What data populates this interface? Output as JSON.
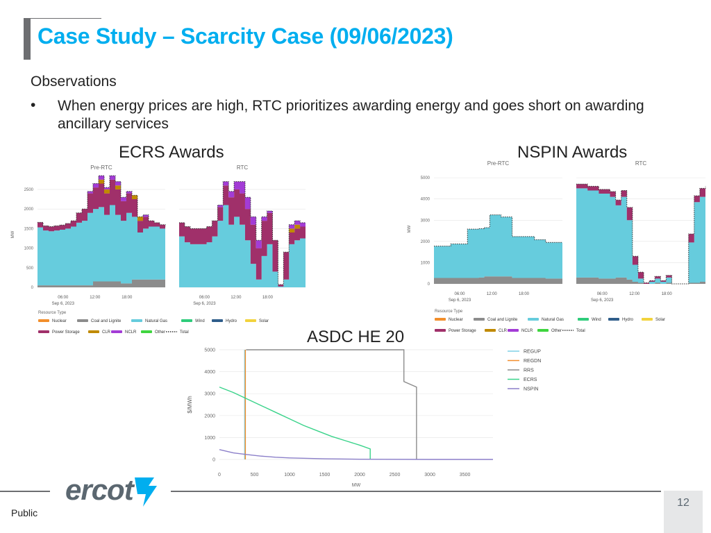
{
  "title": "Case Study – Scarcity Case (09/06/2023)",
  "observations_heading": "Observations",
  "bullet_marker": "•",
  "bullet_text": "When energy prices are high, RTC prioritizes awarding energy and goes short on awarding ancillary services",
  "footer": {
    "logo": "ercot",
    "classification": "Public",
    "page_number": "12"
  },
  "colors": {
    "title": "#00aeef",
    "nuclear": "#f28e2b",
    "coal": "#8c8c8c",
    "gas": "#66ccdd",
    "wind": "#2fcc7b",
    "hydro": "#2f5d8a",
    "solar": "#f2d33d",
    "storage": "#a0306a",
    "clr": "#c08a00",
    "nclr": "#a33cd6",
    "other": "#3fd53f",
    "regup": "#7fd0e6",
    "regdn": "#f28e2b",
    "rrs": "#8c8c8c",
    "ecrs": "#39d38a",
    "nspin": "#8b7fc9"
  },
  "legend_title": "Resource Type",
  "legend_items": [
    {
      "label": "Nuclear",
      "color": "#f28e2b",
      "dotted": false
    },
    {
      "label": "Coal and Lignite",
      "color": "#8c8c8c",
      "dotted": false
    },
    {
      "label": "Natural Gas",
      "color": "#66ccdd",
      "dotted": false
    },
    {
      "label": "Wind",
      "color": "#2fcc7b",
      "dotted": false
    },
    {
      "label": "Hydro",
      "color": "#2f5d8a",
      "dotted": false
    },
    {
      "label": "Solar",
      "color": "#f2d33d",
      "dotted": false
    },
    {
      "label": "Power Storage",
      "color": "#a0306a",
      "dotted": false
    },
    {
      "label": "CLR",
      "color": "#c08a00",
      "dotted": false
    },
    {
      "label": "NCLR",
      "color": "#a33cd6",
      "dotted": false
    },
    {
      "label": "Other",
      "color": "#3fd53f",
      "dotted": false
    },
    {
      "label": "Total",
      "color": "#333333",
      "dotted": true
    }
  ],
  "chart_data": [
    {
      "type": "area",
      "title": "ECRS Awards",
      "ylabel": "MW",
      "yticks": [
        "0",
        "500",
        "1000",
        "1500",
        "2000",
        "2500"
      ],
      "ylim": [
        0,
        2800
      ],
      "xticks": [
        "06:00",
        "12:00",
        "18:00"
      ],
      "xdate": "Sep 6, 2023",
      "panels": [
        {
          "name": "Pre-RTC",
          "x": [
            0,
            1,
            2,
            3,
            4,
            5,
            6,
            7,
            8,
            9,
            10,
            11,
            12,
            13,
            14,
            15,
            16,
            17,
            18,
            19,
            20,
            21,
            22,
            23
          ],
          "series": [
            {
              "name": "Coal and Lignite",
              "values": [
                50,
                50,
                50,
                50,
                50,
                50,
                50,
                50,
                50,
                50,
                150,
                150,
                150,
                150,
                150,
                100,
                100,
                200,
                200,
                200,
                200,
                200,
                200,
                200
              ]
            },
            {
              "name": "Natural Gas",
              "values": [
                1480,
                1400,
                1380,
                1400,
                1420,
                1450,
                1500,
                1600,
                1650,
                1850,
                1850,
                1900,
                1700,
                1950,
                1700,
                1600,
                1800,
                1600,
                1200,
                1300,
                1350,
                1350,
                1300,
                1250
              ]
            },
            {
              "name": "Power Storage",
              "values": [
                130,
                120,
                120,
                120,
                120,
                130,
                150,
                250,
                300,
                500,
                550,
                600,
                550,
                650,
                650,
                500,
                500,
                450,
                300,
                300,
                150,
                100,
                100,
                100
              ]
            },
            {
              "name": "CLR",
              "values": [
                0,
                0,
                0,
                0,
                0,
                0,
                0,
                0,
                0,
                0,
                0,
                100,
                100,
                0,
                100,
                0,
                0,
                100,
                100,
                0,
                0,
                0,
                0,
                0
              ]
            },
            {
              "name": "NCLR",
              "values": [
                0,
                0,
                0,
                0,
                0,
                0,
                0,
                0,
                0,
                50,
                100,
                100,
                50,
                100,
                100,
                100,
                50,
                0,
                0,
                50,
                0,
                0,
                0,
                0
              ]
            }
          ]
        },
        {
          "name": "RTC",
          "x": [
            0,
            1,
            2,
            3,
            4,
            5,
            6,
            7,
            8,
            9,
            10,
            11,
            12,
            13,
            14,
            15,
            16,
            17,
            18,
            19,
            20,
            21,
            22,
            23
          ],
          "series": [
            {
              "name": "Coal and Lignite",
              "values": [
                0,
                0,
                0,
                0,
                0,
                0,
                0,
                0,
                0,
                0,
                0,
                0,
                0,
                0,
                0,
                0,
                0,
                0,
                0,
                0,
                0,
                0,
                0,
                0
              ]
            },
            {
              "name": "Natural Gas",
              "values": [
                1300,
                1150,
                1100,
                1100,
                1100,
                1150,
                1300,
                1700,
                2100,
                1600,
                1800,
                1600,
                1200,
                600,
                200,
                800,
                1100,
                400,
                20,
                200,
                1100,
                1200,
                1250,
                1250
              ]
            },
            {
              "name": "Power Storage",
              "values": [
                350,
                400,
                400,
                400,
                400,
                400,
                400,
                350,
                500,
                700,
                700,
                800,
                800,
                1000,
                800,
                900,
                800,
                800,
                50,
                700,
                300,
                300,
                300,
                300
              ]
            },
            {
              "name": "CLR",
              "values": [
                0,
                0,
                0,
                0,
                0,
                0,
                0,
                0,
                0,
                0,
                0,
                0,
                0,
                0,
                0,
                0,
                0,
                0,
                0,
                0,
                100,
                100,
                0,
                0
              ]
            },
            {
              "name": "NCLR",
              "values": [
                0,
                0,
                0,
                0,
                0,
                0,
                0,
                50,
                100,
                150,
                200,
                300,
                300,
                200,
                200,
                100,
                50,
                0,
                0,
                0,
                100,
                100,
                100,
                100
              ]
            }
          ]
        }
      ]
    },
    {
      "type": "area",
      "title": "NSPIN Awards",
      "ylabel": "MW",
      "yticks": [
        "0",
        "1000",
        "2000",
        "3000",
        "4000",
        "5000"
      ],
      "ylim": [
        0,
        5200
      ],
      "xticks": [
        "06:00",
        "12:00",
        "18:00"
      ],
      "xdate": "Sep 6, 2023",
      "panels": [
        {
          "name": "Pre-RTC",
          "x": [
            0,
            1,
            2,
            3,
            4,
            5,
            6,
            7,
            8,
            9,
            10,
            11,
            12,
            13,
            14,
            15,
            16,
            17,
            18,
            19,
            20,
            21,
            22,
            23
          ],
          "series": [
            {
              "name": "Coal and Lignite",
              "values": [
                280,
                280,
                280,
                280,
                280,
                280,
                280,
                280,
                300,
                350,
                350,
                350,
                350,
                350,
                280,
                280,
                280,
                280,
                280,
                280,
                250,
                250,
                250,
                250
              ]
            },
            {
              "name": "Natural Gas",
              "values": [
                1500,
                1500,
                1500,
                1600,
                1600,
                1600,
                2300,
                2300,
                2300,
                2300,
                2900,
                2900,
                2800,
                2800,
                1950,
                1950,
                1950,
                1950,
                1800,
                1800,
                1700,
                1700,
                1700,
                1700
              ]
            }
          ]
        },
        {
          "name": "RTC",
          "x": [
            0,
            1,
            2,
            3,
            4,
            5,
            6,
            7,
            8,
            9,
            10,
            11,
            12,
            13,
            14,
            15,
            16,
            17,
            18,
            19,
            20,
            21,
            22,
            23
          ],
          "series": [
            {
              "name": "Coal and Lignite",
              "values": [
                300,
                300,
                300,
                300,
                250,
                250,
                250,
                300,
                300,
                200,
                100,
                50,
                0,
                0,
                50,
                0,
                50,
                0,
                0,
                0,
                50,
                50,
                100,
                100
              ]
            },
            {
              "name": "Natural Gas",
              "values": [
                4200,
                4200,
                4100,
                4100,
                4000,
                4000,
                3850,
                3400,
                3800,
                2800,
                800,
                200,
                0,
                100,
                200,
                100,
                250,
                0,
                0,
                0,
                1900,
                3800,
                4000,
                4100
              ]
            },
            {
              "name": "Power Storage",
              "values": [
                200,
                200,
                200,
                200,
                200,
                200,
                250,
                250,
                300,
                600,
                400,
                300,
                50,
                50,
                100,
                50,
                100,
                0,
                0,
                0,
                400,
                300,
                400,
                400
              ]
            }
          ]
        }
      ]
    },
    {
      "type": "line",
      "title": "ASDC HE 20",
      "xlabel": "MW",
      "ylabel": "$/MWh",
      "xlim": [
        0,
        3900
      ],
      "ylim": [
        0,
        5000
      ],
      "xticks": [
        0,
        500,
        1000,
        1500,
        2000,
        2500,
        3000,
        3500
      ],
      "yticks": [
        0,
        1000,
        2000,
        3000,
        4000,
        5000
      ],
      "series": [
        {
          "name": "REGUP",
          "x": [
            360,
            360
          ],
          "y": [
            0,
            5000
          ],
          "color": "#7fd0e6"
        },
        {
          "name": "REGDN",
          "x": [
            370,
            370
          ],
          "y": [
            0,
            5000
          ],
          "color": "#f28e2b"
        },
        {
          "name": "RRS",
          "x": [
            380,
            380,
            2630,
            2630,
            2810,
            2810
          ],
          "y": [
            5000,
            5000,
            5000,
            3550,
            3300,
            0
          ],
          "color": "#8c8c8c"
        },
        {
          "name": "ECRS",
          "x": [
            0,
            200,
            400,
            600,
            800,
            1000,
            1200,
            1400,
            1600,
            1800,
            2000,
            2150,
            2150
          ],
          "y": [
            3300,
            3050,
            2750,
            2450,
            2150,
            1850,
            1550,
            1300,
            1050,
            850,
            650,
            480,
            0
          ],
          "color": "#39d38a"
        },
        {
          "name": "NSPIN",
          "x": [
            0,
            200,
            400,
            600,
            800,
            1000,
            1500,
            2000,
            3000,
            3900
          ],
          "y": [
            450,
            300,
            220,
            150,
            100,
            70,
            30,
            10,
            0,
            0
          ],
          "color": "#8b7fc9"
        }
      ]
    }
  ]
}
